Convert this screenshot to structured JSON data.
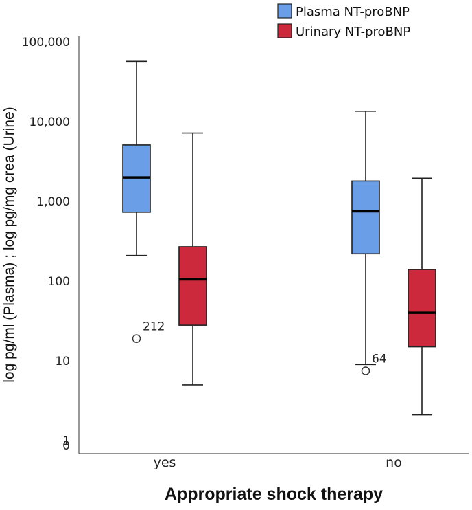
{
  "chart_data": {
    "type": "box",
    "xlabel": "Appropriate shock therapy",
    "ylabel": "log pg/ml (Plasma) ; log pg/mg crea (Urine)",
    "yscale": "log",
    "y_tick_labels": [
      "0",
      "1",
      "10",
      "100",
      "1,000",
      "10,000",
      "100,000"
    ],
    "categories": [
      "yes",
      "no"
    ],
    "series": [
      {
        "name": "Plasma NT-proBNP",
        "color": "#6a9ee6",
        "boxes": [
          {
            "category": "yes",
            "min": 210,
            "q1": 730,
            "median": 2000,
            "q3": 5100,
            "max": 57000,
            "outliers": [
              {
                "value": 19,
                "label": "212"
              }
            ]
          },
          {
            "category": "no",
            "min": 9,
            "q1": 220,
            "median": 750,
            "q3": 1800,
            "max": 13500,
            "outliers": [
              {
                "value": 7.5,
                "label": "64"
              }
            ]
          }
        ]
      },
      {
        "name": "Urinary NT-proBNP",
        "color": "#cc2a3c",
        "boxes": [
          {
            "category": "yes",
            "min": 5,
            "q1": 28,
            "median": 105,
            "q3": 270,
            "max": 7200,
            "outliers": []
          },
          {
            "category": "no",
            "min": 2.1,
            "q1": 15,
            "median": 40,
            "q3": 140,
            "max": 1950,
            "outliers": []
          }
        ]
      }
    ],
    "legend": {
      "position": "top-right"
    }
  }
}
